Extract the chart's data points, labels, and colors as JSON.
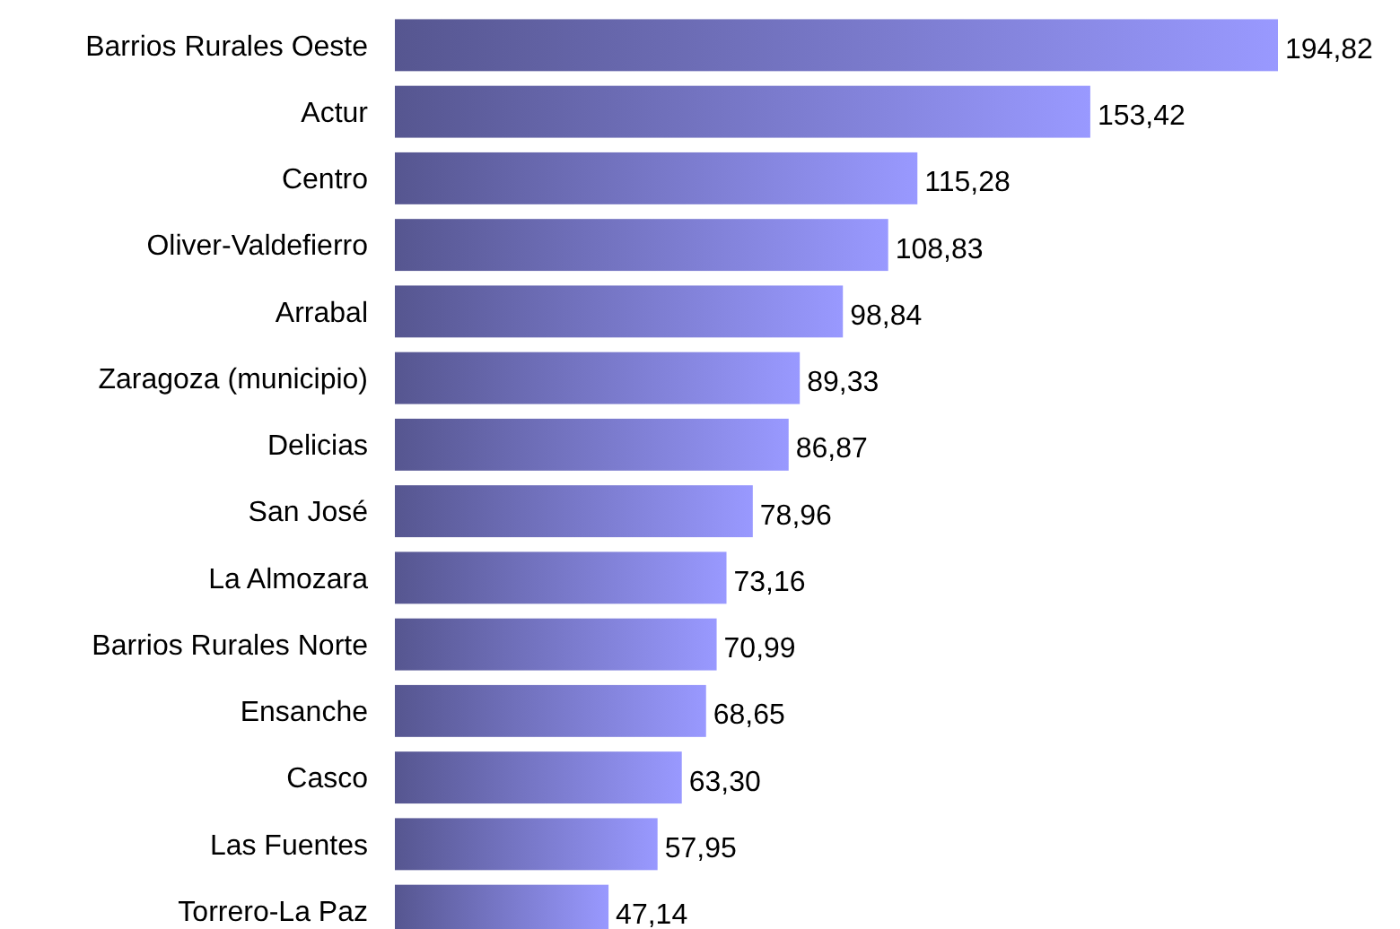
{
  "chart_data": {
    "type": "bar",
    "orientation": "horizontal",
    "categories": [
      "Barrios Rurales Oeste",
      "Actur",
      "Centro",
      "Oliver-Valdefierro",
      "Arrabal",
      "Zaragoza (municipio)",
      "Delicias",
      "San José",
      "La Almozara",
      "Barrios Rurales Norte",
      "Ensanche",
      "Casco",
      "Las Fuentes",
      "Torrero-La Paz"
    ],
    "values": [
      194.82,
      153.42,
      115.28,
      108.83,
      98.84,
      89.33,
      86.87,
      78.96,
      73.16,
      70.99,
      68.65,
      63.3,
      57.95,
      47.14
    ],
    "value_labels": [
      "194,82",
      "153,42",
      "115,28",
      "108,83",
      "98,84",
      "89,33",
      "86,87",
      "78,96",
      "73,16",
      "70,99",
      "68,65",
      "63,30",
      "57,95",
      "47,14"
    ],
    "color": "#9999ff"
  }
}
